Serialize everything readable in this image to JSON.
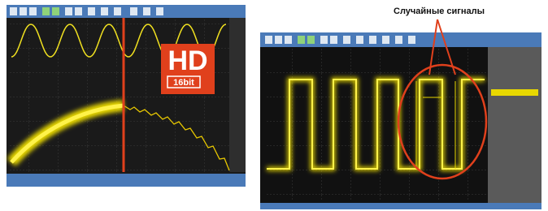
{
  "logo": {
    "title": "HD",
    "subtitle": "16bit"
  },
  "annotation": {
    "text": "Случайные сигналы"
  }
}
